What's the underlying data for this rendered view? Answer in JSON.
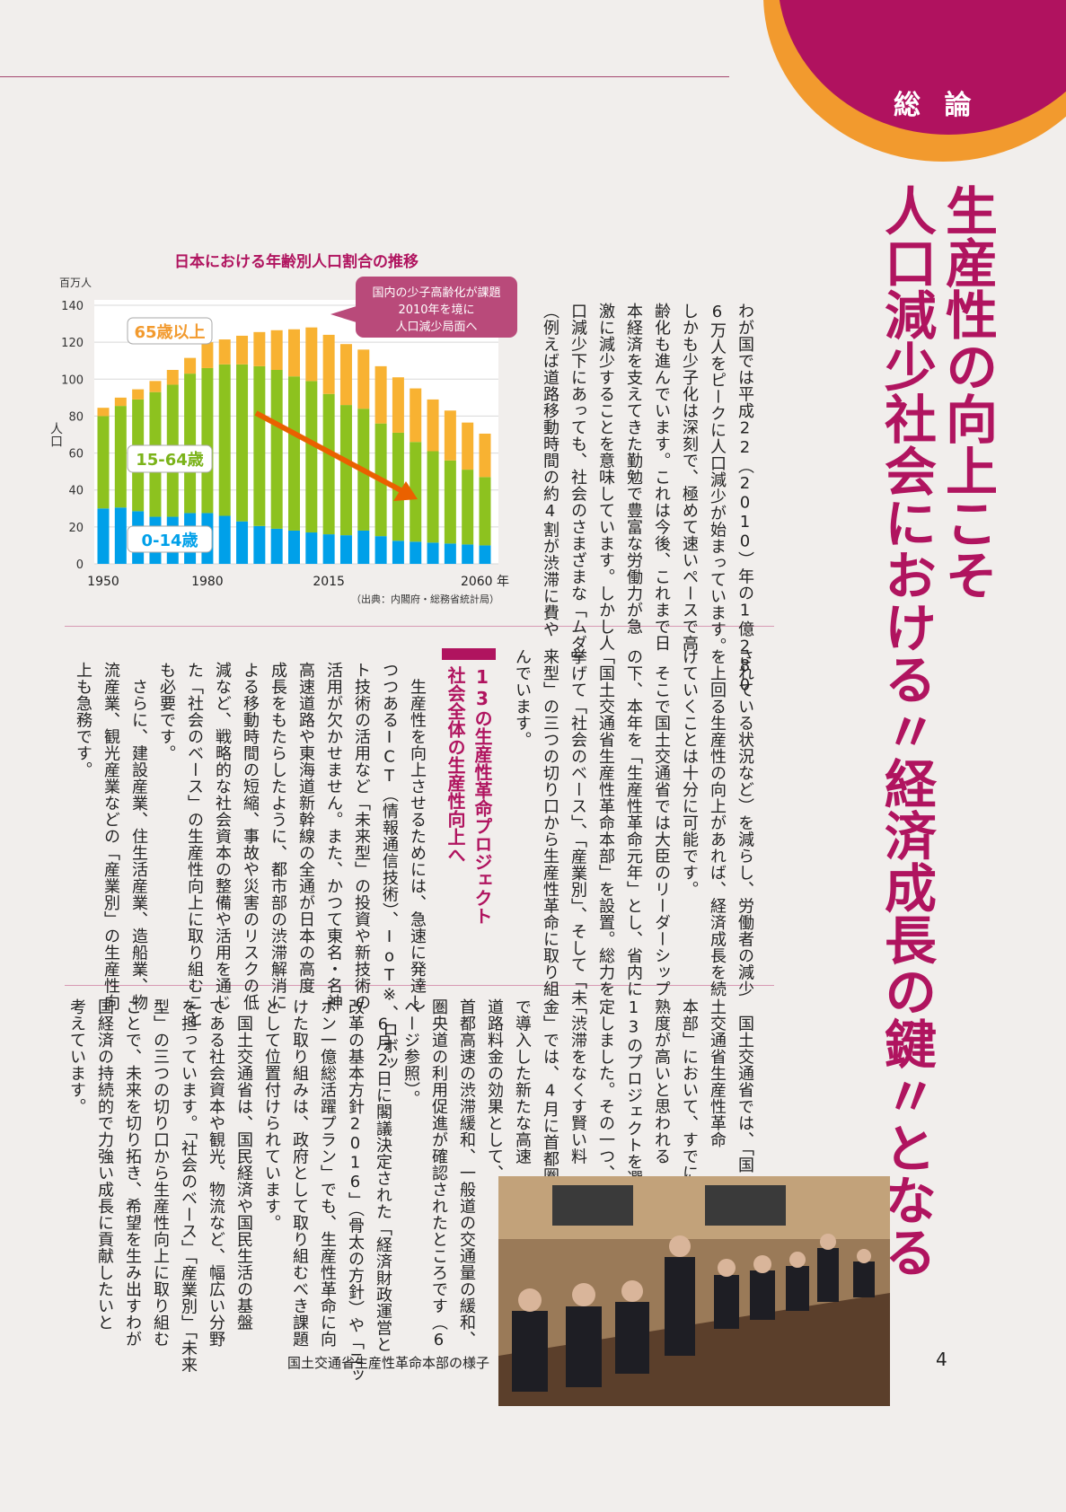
{
  "section_label": "総 論",
  "title": {
    "line1": "生産性の向上こそ",
    "line2": "人口減少社会における〃経済成長の鍵〃となる"
  },
  "intro_lines": [
    "わが国では平成22（2010）年の1億280",
    "6万人をピークに人口減少が始まっています。",
    "しかも少子化は深刻で、極めて速いペースで高",
    "齢化も進んでいます。これは今後、これまで日",
    "本経済を支えてきた勤勉で豊富な労働力が急",
    "激に減少することを意味しています。しかし人",
    "口減少下にあっても、社会のさまざまな「ムダ」",
    "（例えば道路移動時間の約4割が渋滞に費や"
  ],
  "middle_right_lines": [
    "されている状況など）を減らし、労働者の減少",
    "を上回る生産性の向上があれば、経済成長を続",
    "けていくことは十分に可能です。",
    "　そこで国土交通省では大臣のリーダーシップ",
    "の下、本年を「生産性革命元年」とし、省内に",
    "「国土交通省生産性革命本部」を設置。総力を",
    "挙げて「社会のベース」、「産業別」、そして「未",
    "来型」の三つの切り口から生産性革命に取り組",
    "んでいます。"
  ],
  "heading": {
    "line1": "13の生産性革命プロジェクト",
    "line2": "社会全体の生産性向上へ"
  },
  "middle_left_lines": [
    "　生産性を向上させるためには、急速に発達し",
    "つつあるICT（情報通信技術）、IoT※、ロボッ",
    "ト技術の活用など「未来型」の投資や新技術の",
    "活用が欠かせません。また、かつて東名・名神",
    "高速道路や東海道新幹線の全通が日本の高度",
    "成長をもたらしたように、都市部の渋滞解消に",
    "よる移動時間の短縮、事故や災害のリスクの低",
    "減など、戦略的な社会資本の整備や活用を通じ",
    "た「社会のベース」の生産性向上に取り組むこと",
    "も必要です。",
    "　さらに、建設産業、住生活産業、造船業、物",
    "流産業、観光産業などの「産業別」の生産性向",
    "上も急務です。"
  ],
  "bottom_lines": [
    "　国土交通省では、「国",
    "土交通省生産性革命",
    "本部」において、すでに",
    "熟度が高いと思われる",
    "13のプロジェクトを選",
    "定しました。その一つ、",
    "「渋滞をなくす賢い料",
    "金」では、4月に首都圏",
    "で導入した新たな高速",
    "道路料金の効果として、",
    "首都高速の渋滞緩和、一般道の交通量の緩和、",
    "圏央道の利用促進が確認されたところです（6",
    "ページ参照）。",
    "　6月2日に閣議決定された「経済財政運営と",
    "改革の基本方針2016」（骨太の方針）や「ニッ",
    "ポン一億総活躍プラン」でも、生産性革命に向",
    "けた取り組みは、政府として取り組むべき課題",
    "として位置付けられています。",
    "　国土交通省は、国民経済や国民生活の基盤",
    "である社会資本や観光、物流など、幅広い分野",
    "を担っています。「社会のベース」「産業別」「未来",
    "型」の三つの切り口から生産性向上に取り組む",
    "ことで、未来を切り拓き、希望を生み出すわが",
    "国経済の持続的で力強い成長に貢献したいと",
    "考えています。"
  ],
  "photo_caption": "国土交通省生産性革命本部の様子",
  "page_number": "4",
  "colors": {
    "magenta": "#b0145f",
    "orange": "#f29a2e",
    "green": "#8dc21f",
    "blue": "#00a0e9",
    "old": "#f8b232"
  },
  "chart_data": {
    "type": "bar",
    "stacked": true,
    "title": "日本における年齢別人口割合の推移",
    "unit_label": "百万人",
    "ylabel": "人口",
    "ylim": [
      0,
      140
    ],
    "yticks": [
      0,
      20,
      40,
      60,
      80,
      100,
      120,
      140
    ],
    "x": [
      1950,
      1955,
      1960,
      1965,
      1970,
      1975,
      1980,
      1985,
      1990,
      1995,
      2000,
      2005,
      2010,
      2015,
      2020,
      2025,
      2030,
      2035,
      2040,
      2045,
      2050,
      2055,
      2060
    ],
    "xtick_labels": [
      {
        "year": 1950,
        "label": "1950"
      },
      {
        "year": 1980,
        "label": "1980"
      },
      {
        "year": 2015,
        "label": "2015"
      },
      {
        "year": 2060,
        "label": "2060 年"
      }
    ],
    "series": [
      {
        "name": "0-14歳",
        "color": "#00a0e9",
        "values": [
          30,
          30.5,
          28.5,
          25.5,
          25.5,
          27.5,
          27.5,
          26,
          23,
          20.5,
          19,
          18,
          17,
          16,
          15.5,
          18,
          15,
          12.5,
          12,
          11.5,
          11,
          10.5,
          10
        ]
      },
      {
        "name": "15-64歳",
        "color": "#8dc21f",
        "values": [
          50,
          55,
          60.5,
          67.5,
          71.5,
          75.5,
          78.5,
          82,
          85,
          86.5,
          86,
          83.5,
          82,
          76,
          70.5,
          66,
          61,
          58.5,
          54,
          49.5,
          45,
          40.5,
          37
        ]
      },
      {
        "name": "65歳以上",
        "color": "#f8b232",
        "values": [
          4.5,
          4.5,
          5.5,
          6,
          8,
          8.5,
          14,
          13.5,
          15.5,
          18.5,
          21.5,
          25.5,
          29,
          32,
          33,
          32,
          31,
          30,
          29,
          28,
          27,
          25.5,
          23.5
        ]
      }
    ],
    "annotation": [
      "国内の少子高齢化が課題",
      "2010年を境に",
      "人口減少局面へ"
    ],
    "source": "（出典：内閣府・総務省統計局）",
    "grid": true
  }
}
